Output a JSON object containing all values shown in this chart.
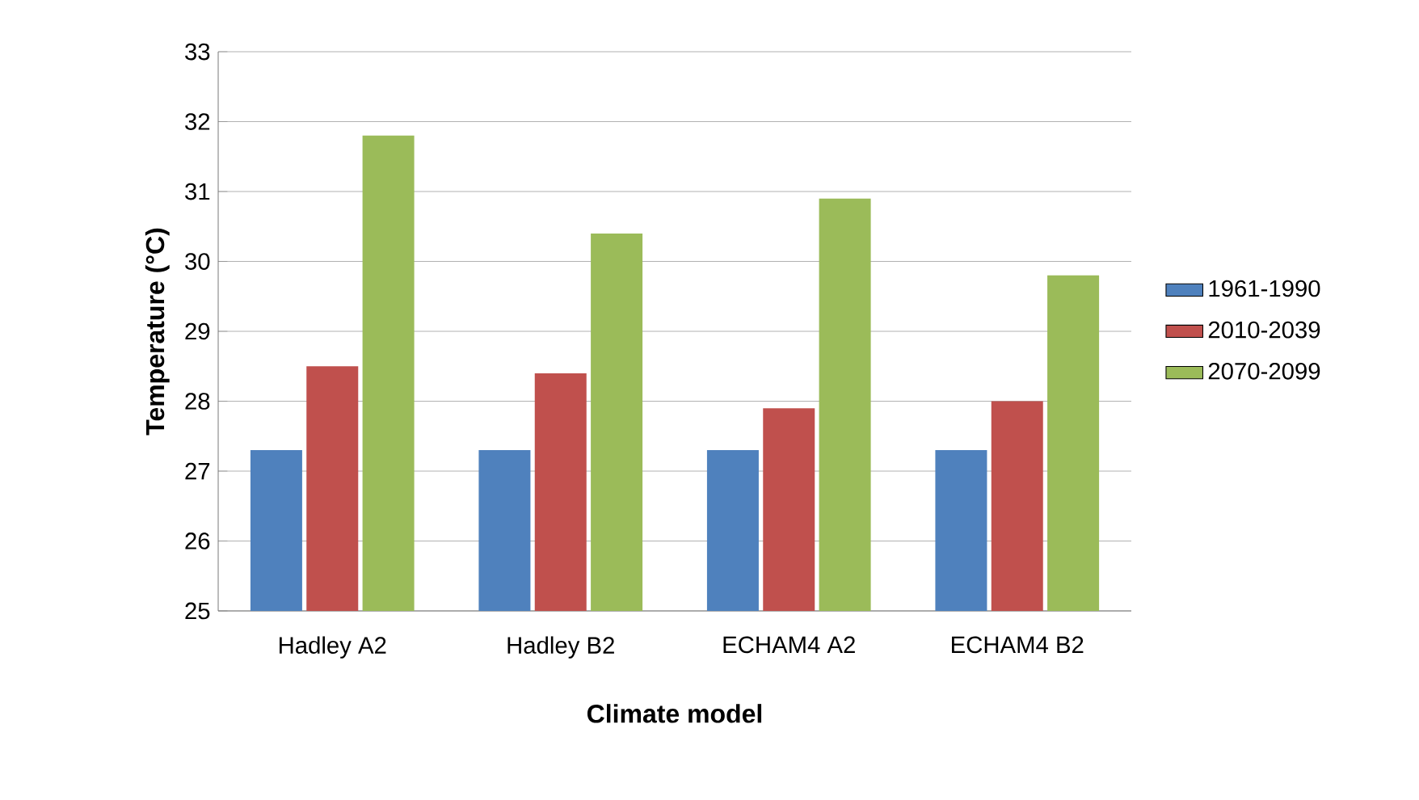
{
  "chart_data": {
    "type": "bar",
    "xlabel": "Climate model",
    "ylabel": "Temperature (°C)",
    "categories": [
      "Hadley A2",
      "Hadley B2",
      "ECHAM4 A2",
      "ECHAM4 B2"
    ],
    "series": [
      {
        "name": "1961-1990",
        "color": "#4f81bd",
        "values": [
          27.3,
          27.3,
          27.3,
          27.3
        ]
      },
      {
        "name": "2010-2039",
        "color": "#c0504d",
        "values": [
          28.5,
          28.4,
          27.9,
          28.0
        ]
      },
      {
        "name": "2070-2099",
        "color": "#9bbb59",
        "values": [
          31.8,
          30.4,
          30.9,
          29.8
        ]
      }
    ],
    "ylim": [
      25,
      33
    ],
    "yticks": [
      25,
      26,
      27,
      28,
      29,
      30,
      31,
      32,
      33
    ],
    "grid": "y",
    "legend": "right"
  }
}
